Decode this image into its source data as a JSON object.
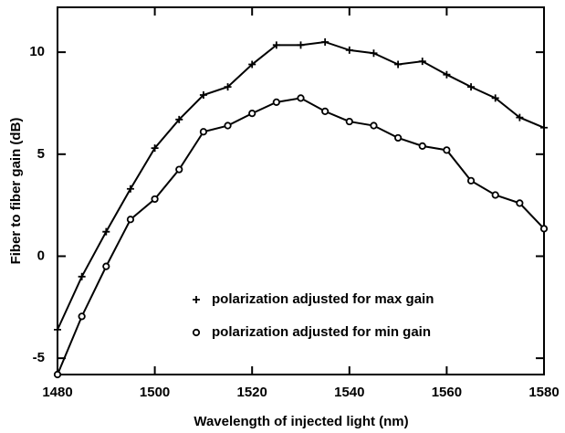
{
  "chart_data": {
    "type": "line",
    "xlabel": "Wavelength of injected light (nm)",
    "ylabel": "Fiber to fiber gain (dB)",
    "x": [
      1480,
      1485,
      1490,
      1495,
      1500,
      1505,
      1510,
      1515,
      1520,
      1525,
      1530,
      1535,
      1540,
      1545,
      1550,
      1555,
      1560,
      1565,
      1570,
      1575,
      1580
    ],
    "series": [
      {
        "name": "polarization adjusted for max gain",
        "color": "#000000",
        "marker": "plus",
        "values": [
          -3.6,
          -1.0,
          1.2,
          3.3,
          5.3,
          6.7,
          7.9,
          8.3,
          9.4,
          10.35,
          10.35,
          10.5,
          10.1,
          9.95,
          9.4,
          9.55,
          8.9,
          8.3,
          7.75,
          6.8,
          6.3
        ]
      },
      {
        "name": "polarization adjusted for min gain",
        "color": "#000000",
        "marker": "circle",
        "values": [
          -5.8,
          -2.95,
          -0.5,
          1.8,
          2.8,
          4.25,
          6.1,
          6.4,
          7.0,
          7.55,
          7.75,
          7.1,
          6.6,
          6.4,
          5.8,
          5.4,
          5.2,
          3.7,
          3.0,
          2.6,
          1.35
        ]
      }
    ],
    "xlim": [
      1480,
      1580
    ],
    "xticks": [
      1480,
      1500,
      1520,
      1540,
      1560,
      1580
    ],
    "ylim": [
      -5.8,
      12.2
    ],
    "yticks": [
      -5,
      0,
      5,
      10
    ],
    "grid": false,
    "legend": "lower center"
  }
}
